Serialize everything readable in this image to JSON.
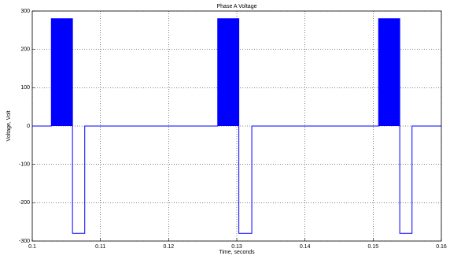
{
  "chart_data": {
    "type": "line",
    "title": "Phase A Voltage",
    "x_label": "Time, seconds",
    "y_label": "Voltage, Volt",
    "x": [
      0.1,
      0.1028,
      0.1028,
      0.1059,
      0.1059,
      0.1077,
      0.1077,
      0.1272,
      0.1272,
      0.1303,
      0.1303,
      0.1322,
      0.1322,
      0.1508,
      0.1508,
      0.1539,
      0.1539,
      0.1557,
      0.1557,
      0.16
    ],
    "series": [
      {
        "name": "Phase A",
        "color": "#0000ff",
        "values": [
          0,
          0,
          280,
          280,
          -280,
          -280,
          0,
          0,
          280,
          280,
          -280,
          -280,
          0,
          0,
          280,
          280,
          -280,
          -280,
          0,
          0
        ]
      }
    ],
    "xlim": [
      0.1,
      0.16
    ],
    "xticks": [
      0.1,
      0.11,
      0.12,
      0.13,
      0.14,
      0.15,
      0.16
    ],
    "ylim": [
      -300,
      300
    ],
    "yticks": [
      -300,
      -200,
      -100,
      0,
      100,
      200,
      300
    ],
    "grid": true
  }
}
